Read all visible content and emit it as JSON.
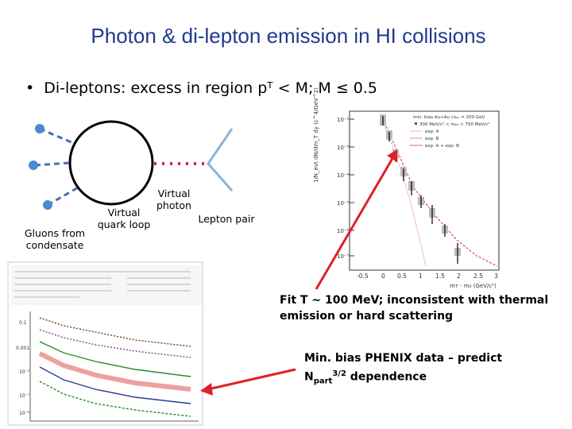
{
  "slide": {
    "title": "Photon & di-lepton emission in HI collisions",
    "bullet": "Di-leptons: excess in region pᵀ < M;  M ≤ 0.5"
  },
  "diagram": {
    "labels": {
      "virtual_photon": "Virtual\nphoton",
      "virtual_quark_loop": "Virtual\nquark loop",
      "lepton_pair": "Lepton pair",
      "gluons_from_condensate": "Gluons from\ncondensate"
    }
  },
  "notes": {
    "fit_line1": "Fit T ~ 100 MeV; inconsistent with thermal",
    "fit_line2": "emission or hard scattering",
    "phenix_line1": "Min. bias PHENIX data – predict",
    "phenix_n": "N",
    "phenix_sub": "part",
    "phenix_sup": "3/2",
    "phenix_rest": " dependence"
  },
  "right_plot": {
    "x_ticks": [
      "-0.5",
      "0",
      "0.5",
      "1",
      "1.5",
      "2",
      "2.5",
      "3"
    ],
    "x_label": "mᴛ - m₀ (GeV/c²)",
    "legend": [
      "min. bias Au+Au √sₙₙ = 200 GeV",
      "300 MeV/c² < mₑₑ < 750 MeV/c²",
      "exp: A",
      "exp: B",
      "exp: A + exp: B"
    ]
  },
  "colors": {
    "title": "#1f3a8f",
    "arrow": "#e0202a",
    "dashed_line": "#4a6fae",
    "lepton_line": "#8fb4d8",
    "condensate": "#4a89d4",
    "photon_dots": "#d7263d"
  }
}
